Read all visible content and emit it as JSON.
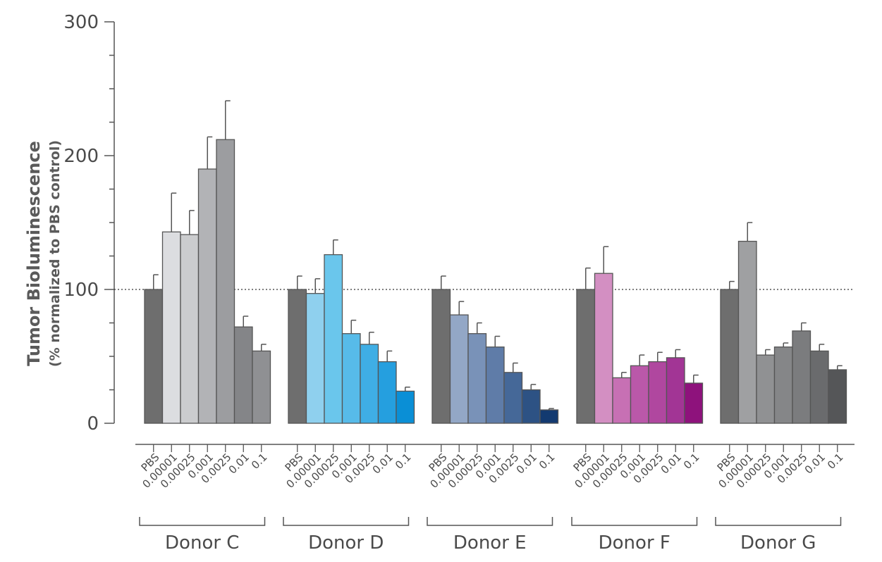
{
  "chart_data": {
    "type": "bar",
    "ylabel": "Tumor Bioluminescence",
    "ylabel_sub": "(% normalized to PBS control)",
    "ylim": [
      0,
      300
    ],
    "yticks": [
      0,
      100,
      200,
      300
    ],
    "yticks_labels": [
      "0",
      "100",
      "200",
      "300"
    ],
    "reference_line": 100,
    "dose_labels": [
      "PBS",
      "0.00001",
      "0.00025",
      "0.001",
      "0.0025",
      "0.01",
      "0.1"
    ],
    "groups": [
      {
        "name": "Donor C",
        "values": [
          100,
          143,
          141,
          190,
          212,
          72,
          54
        ],
        "errors": [
          11,
          29,
          18,
          24,
          29,
          8,
          5
        ],
        "colors": [
          "#6e6e6e",
          "#dcdde0",
          "#cbccce",
          "#b2b3b6",
          "#9c9da0",
          "#848588",
          "#8f9093"
        ]
      },
      {
        "name": "Donor D",
        "values": [
          100,
          97,
          126,
          67,
          59,
          46,
          24
        ],
        "errors": [
          10,
          11,
          11,
          10,
          9,
          8,
          3
        ],
        "colors": [
          "#6e6e6e",
          "#8fd0ee",
          "#6ac6ec",
          "#57bbe9",
          "#3faee5",
          "#259fdf",
          "#0a8fd6"
        ]
      },
      {
        "name": "Donor E",
        "values": [
          100,
          81,
          67,
          57,
          38,
          25,
          10
        ],
        "errors": [
          10,
          10,
          8,
          8,
          7,
          4,
          1
        ],
        "colors": [
          "#6e6e6e",
          "#93a7c6",
          "#7992b8",
          "#5f7ca8",
          "#456898",
          "#2d5284",
          "#133a70"
        ]
      },
      {
        "name": "Donor F",
        "values": [
          100,
          112,
          34,
          43,
          46,
          49,
          30
        ],
        "errors": [
          16,
          20,
          4,
          8,
          7,
          6,
          6
        ],
        "colors": [
          "#6e6e6e",
          "#d38fc2",
          "#c770b4",
          "#ba58a9",
          "#b0479f",
          "#a23595",
          "#8e127c"
        ]
      },
      {
        "name": "Donor G",
        "values": [
          100,
          136,
          51,
          57,
          69,
          54,
          40
        ],
        "errors": [
          6,
          14,
          4,
          3,
          6,
          5,
          3
        ],
        "colors": [
          "#6e6e6e",
          "#9fa0a2",
          "#909193",
          "#858688",
          "#7b7c7e",
          "#6a6b6d",
          "#555658"
        ]
      }
    ]
  }
}
